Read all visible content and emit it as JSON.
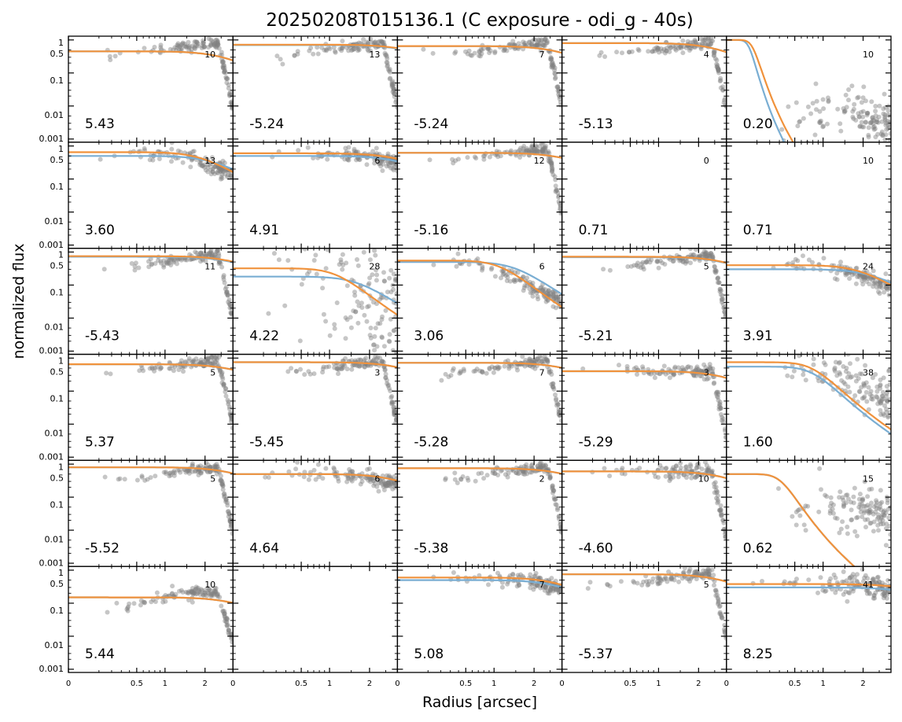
{
  "chart_data": {
    "type": "scatter",
    "title": "20250208T015136.1 (C exposure - odi_g - 40s)",
    "xlabel": "Radius [arcsec]",
    "ylabel": "normalized flux",
    "x_scale": "sqrt",
    "xlim": [
      0,
      2.9
    ],
    "y_scale": "log",
    "ylim": [
      0.0008,
      1.3
    ],
    "x_ticks": [
      0,
      0.5,
      1,
      2
    ],
    "x_tick_labels": [
      "0",
      "0.5",
      "1",
      "2"
    ],
    "y_ticks": [
      0.001,
      0.01,
      0.1,
      0.5,
      1
    ],
    "y_tick_labels": [
      "0.001",
      "0.01",
      "0.1",
      "0.5",
      "1"
    ],
    "grid": false,
    "colors": {
      "points": "#808080",
      "fit_blue": "#7aaed3",
      "fit_orange": "#f0923c",
      "frame": "#000000"
    },
    "rows": 6,
    "cols": 5,
    "panels": [
      {
        "row": 0,
        "col": 0,
        "value": "5.43",
        "count": "10",
        "has_data": true,
        "data_shape": "rising",
        "blue_level": 0.45,
        "orange_level": 0.45,
        "orange_r_half": 3.0,
        "blue_r_half": 3.0
      },
      {
        "row": 0,
        "col": 1,
        "value": "-5.24",
        "count": "13",
        "has_data": true,
        "data_shape": "rising",
        "blue_level": 0.7,
        "orange_level": 0.72,
        "orange_r_half": 4.0,
        "blue_r_half": 4.0
      },
      {
        "row": 0,
        "col": 2,
        "value": "-5.24",
        "count": "7",
        "has_data": true,
        "data_shape": "rising",
        "blue_level": 0.65,
        "orange_level": 0.65,
        "orange_r_half": 3.3,
        "blue_r_half": 3.3
      },
      {
        "row": 0,
        "col": 3,
        "value": "-5.13",
        "count": "4",
        "has_data": true,
        "data_shape": "rising",
        "blue_level": 0.8,
        "orange_level": 0.8,
        "orange_r_half": 3.0,
        "blue_r_half": 3.0
      },
      {
        "row": 0,
        "col": 4,
        "value": "0.20",
        "count": "10",
        "has_data": true,
        "data_shape": "bump",
        "blue_level": 1.0,
        "orange_level": 1.0,
        "orange_r_half": 0.08,
        "blue_r_half": 0.06
      },
      {
        "row": 1,
        "col": 0,
        "value": "3.60",
        "count": "13",
        "has_data": true,
        "data_shape": "falling",
        "blue_level": 0.5,
        "orange_level": 0.65,
        "orange_r_half": 2.2,
        "blue_r_half": 2.6
      },
      {
        "row": 1,
        "col": 1,
        "value": "4.91",
        "count": "6",
        "has_data": true,
        "data_shape": "falling",
        "blue_level": 0.5,
        "orange_level": 0.6,
        "orange_r_half": 3.5,
        "blue_r_half": 3.5
      },
      {
        "row": 1,
        "col": 2,
        "value": "-5.16",
        "count": "12",
        "has_data": true,
        "data_shape": "rising",
        "blue_level": 0.62,
        "orange_level": 0.62,
        "orange_r_half": 3.6,
        "blue_r_half": 3.6
      },
      {
        "row": 1,
        "col": 3,
        "value": "0.71",
        "count": "0",
        "has_data": false
      },
      {
        "row": 1,
        "col": 4,
        "value": "0.71",
        "count": "10",
        "has_data": false
      },
      {
        "row": 2,
        "col": 0,
        "value": "-5.43",
        "count": "11",
        "has_data": true,
        "data_shape": "rising",
        "blue_level": 0.72,
        "orange_level": 0.75,
        "orange_r_half": 3.5,
        "blue_r_half": 3.5
      },
      {
        "row": 2,
        "col": 1,
        "value": "4.22",
        "count": "28",
        "has_data": true,
        "data_shape": "scatter_wide",
        "blue_level": 0.18,
        "orange_level": 0.32,
        "orange_r_half": 1.3,
        "blue_r_half": 1.9
      },
      {
        "row": 2,
        "col": 2,
        "value": "3.06",
        "count": "6",
        "has_data": true,
        "data_shape": "falling",
        "blue_level": 0.5,
        "orange_level": 0.55,
        "orange_r_half": 1.3,
        "blue_r_half": 1.7
      },
      {
        "row": 2,
        "col": 3,
        "value": "-5.21",
        "count": "5",
        "has_data": true,
        "data_shape": "rising",
        "blue_level": 0.7,
        "orange_level": 0.72,
        "orange_r_half": 3.4,
        "blue_r_half": 3.4
      },
      {
        "row": 2,
        "col": 4,
        "value": "3.91",
        "count": "24",
        "has_data": true,
        "data_shape": "falling",
        "blue_level": 0.3,
        "orange_level": 0.4,
        "orange_r_half": 2.2,
        "blue_r_half": 2.6
      },
      {
        "row": 3,
        "col": 0,
        "value": "5.37",
        "count": "5",
        "has_data": true,
        "data_shape": "rising",
        "blue_level": 0.65,
        "orange_level": 0.65,
        "orange_r_half": 3.5,
        "blue_r_half": 3.5
      },
      {
        "row": 3,
        "col": 1,
        "value": "-5.45",
        "count": "3",
        "has_data": true,
        "data_shape": "rising",
        "blue_level": 0.75,
        "orange_level": 0.75,
        "orange_r_half": 3.6,
        "blue_r_half": 3.6
      },
      {
        "row": 3,
        "col": 2,
        "value": "-5.28",
        "count": "7",
        "has_data": true,
        "data_shape": "rising",
        "blue_level": 0.72,
        "orange_level": 0.72,
        "orange_r_half": 3.6,
        "blue_r_half": 3.6
      },
      {
        "row": 3,
        "col": 3,
        "value": "-5.29",
        "count": "3",
        "has_data": true,
        "data_shape": "flat_drop",
        "blue_level": 0.4,
        "orange_level": 0.4,
        "orange_r_half": 3.3,
        "blue_r_half": 3.3
      },
      {
        "row": 3,
        "col": 4,
        "value": "1.60",
        "count": "38",
        "has_data": true,
        "data_shape": "falling_wide",
        "blue_level": 0.55,
        "orange_level": 0.75,
        "orange_r_half": 0.9,
        "blue_r_half": 0.9
      },
      {
        "row": 4,
        "col": 0,
        "value": "-5.52",
        "count": "5",
        "has_data": true,
        "data_shape": "rising",
        "blue_level": 0.8,
        "orange_level": 0.8,
        "orange_r_half": 3.4,
        "blue_r_half": 3.4
      },
      {
        "row": 4,
        "col": 1,
        "value": "4.64",
        "count": "6",
        "has_data": true,
        "data_shape": "falling",
        "blue_level": 0.5,
        "orange_level": 0.5,
        "orange_r_half": 3.3,
        "blue_r_half": 3.3
      },
      {
        "row": 4,
        "col": 2,
        "value": "-5.38",
        "count": "2",
        "has_data": true,
        "data_shape": "rising",
        "blue_level": 0.75,
        "orange_level": 0.75,
        "orange_r_half": 3.5,
        "blue_r_half": 3.5
      },
      {
        "row": 4,
        "col": 3,
        "value": "-4.60",
        "count": "10",
        "has_data": true,
        "data_shape": "flat_drop",
        "blue_level": 0.6,
        "orange_level": 0.6,
        "orange_r_half": 3.3,
        "blue_r_half": 3.3
      },
      {
        "row": 4,
        "col": 4,
        "value": "0.62",
        "count": "15",
        "has_data": true,
        "data_shape": "bump_wide",
        "blue_level": 0.5,
        "orange_level": 0.5,
        "orange_r_half": 0.35,
        "blue_r_half": 0.35
      },
      {
        "row": 5,
        "col": 0,
        "value": "5.44",
        "count": "10",
        "has_data": true,
        "data_shape": "rising_low",
        "blue_level": 0.15,
        "orange_level": 0.15,
        "orange_r_half": 3.5,
        "blue_r_half": 3.5
      },
      {
        "row": 5,
        "col": 1,
        "value": "",
        "count": "",
        "has_data": false
      },
      {
        "row": 5,
        "col": 2,
        "value": "5.08",
        "count": "7",
        "has_data": true,
        "data_shape": "falling",
        "blue_level": 0.5,
        "orange_level": 0.6,
        "orange_r_half": 3.2,
        "blue_r_half": 3.2
      },
      {
        "row": 5,
        "col": 3,
        "value": "-5.37",
        "count": "5",
        "has_data": true,
        "data_shape": "rising",
        "blue_level": 0.75,
        "orange_level": 0.75,
        "orange_r_half": 3.2,
        "blue_r_half": 3.2
      },
      {
        "row": 5,
        "col": 4,
        "value": "8.25",
        "count": "41",
        "has_data": true,
        "data_shape": "flat_noisy",
        "blue_level": 0.3,
        "orange_level": 0.38,
        "orange_r_half": 4.5,
        "blue_r_half": 4.5
      }
    ]
  }
}
